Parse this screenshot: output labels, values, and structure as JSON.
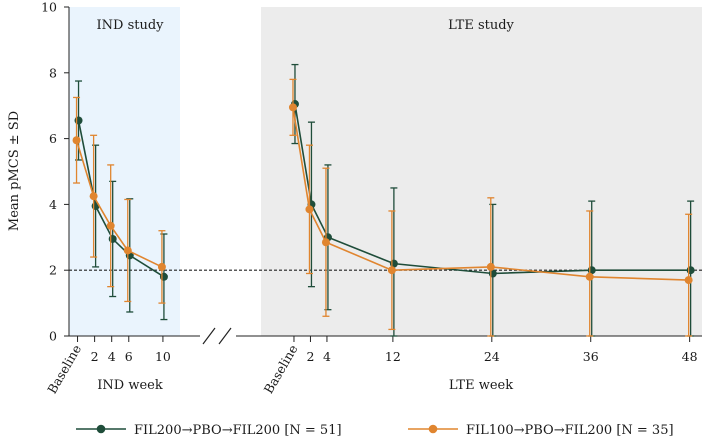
{
  "chart_data": {
    "type": "line",
    "ylabel": "Mean pMCS ± SD",
    "ylim": [
      0,
      10
    ],
    "yticks": [
      0,
      2,
      4,
      6,
      8,
      10
    ],
    "reference_line": 2,
    "panels": [
      {
        "title": "IND study",
        "xlabel": "IND week",
        "xlim": [
          -1,
          12
        ],
        "ticks": [
          {
            "x": 0,
            "label": "Baseline",
            "rotated": true
          },
          {
            "x": 2,
            "label": "2"
          },
          {
            "x": 4,
            "label": "4"
          },
          {
            "x": 6,
            "label": "6"
          },
          {
            "x": 10,
            "label": "10"
          }
        ]
      },
      {
        "title": "LTE study",
        "xlabel": "LTE week",
        "xlim": [
          -4,
          49.5
        ],
        "ticks": [
          {
            "x": 0,
            "label": "Baseline",
            "rotated": true
          },
          {
            "x": 2,
            "label": "2"
          },
          {
            "x": 4,
            "label": "4"
          },
          {
            "x": 12,
            "label": "12"
          },
          {
            "x": 24,
            "label": "24"
          },
          {
            "x": 36,
            "label": "36"
          },
          {
            "x": 48,
            "label": "48"
          }
        ]
      }
    ],
    "series": [
      {
        "name": "FIL200→PBO→FIL200 [N = 51]",
        "color": "#1f4d3a",
        "ind": {
          "x": [
            0,
            2,
            4,
            6,
            10
          ],
          "mean": [
            6.55,
            3.95,
            2.95,
            2.45,
            1.8
          ],
          "sd": [
            1.2,
            1.85,
            1.75,
            1.72,
            1.3
          ]
        },
        "lte": {
          "x": [
            0,
            2,
            4,
            12,
            24,
            36,
            48
          ],
          "mean": [
            7.05,
            4.0,
            3.0,
            2.2,
            1.9,
            2.0,
            2.0
          ],
          "sd": [
            1.2,
            2.5,
            2.2,
            2.3,
            2.1,
            2.1,
            2.1
          ]
        }
      },
      {
        "name": "FIL100→PBO→FIL200 [N = 35]",
        "color": "#e0852f",
        "ind": {
          "x": [
            0,
            2,
            4,
            6,
            10
          ],
          "mean": [
            5.95,
            4.25,
            3.35,
            2.6,
            2.1
          ],
          "sd": [
            1.3,
            1.85,
            1.85,
            1.55,
            1.1
          ]
        },
        "lte": {
          "x": [
            0,
            2,
            4,
            12,
            24,
            36,
            48
          ],
          "mean": [
            6.95,
            3.85,
            2.85,
            2.0,
            2.1,
            1.8,
            1.7
          ],
          "sd": [
            0.85,
            1.95,
            2.25,
            1.8,
            2.1,
            2.0,
            2.0
          ]
        }
      }
    ]
  }
}
